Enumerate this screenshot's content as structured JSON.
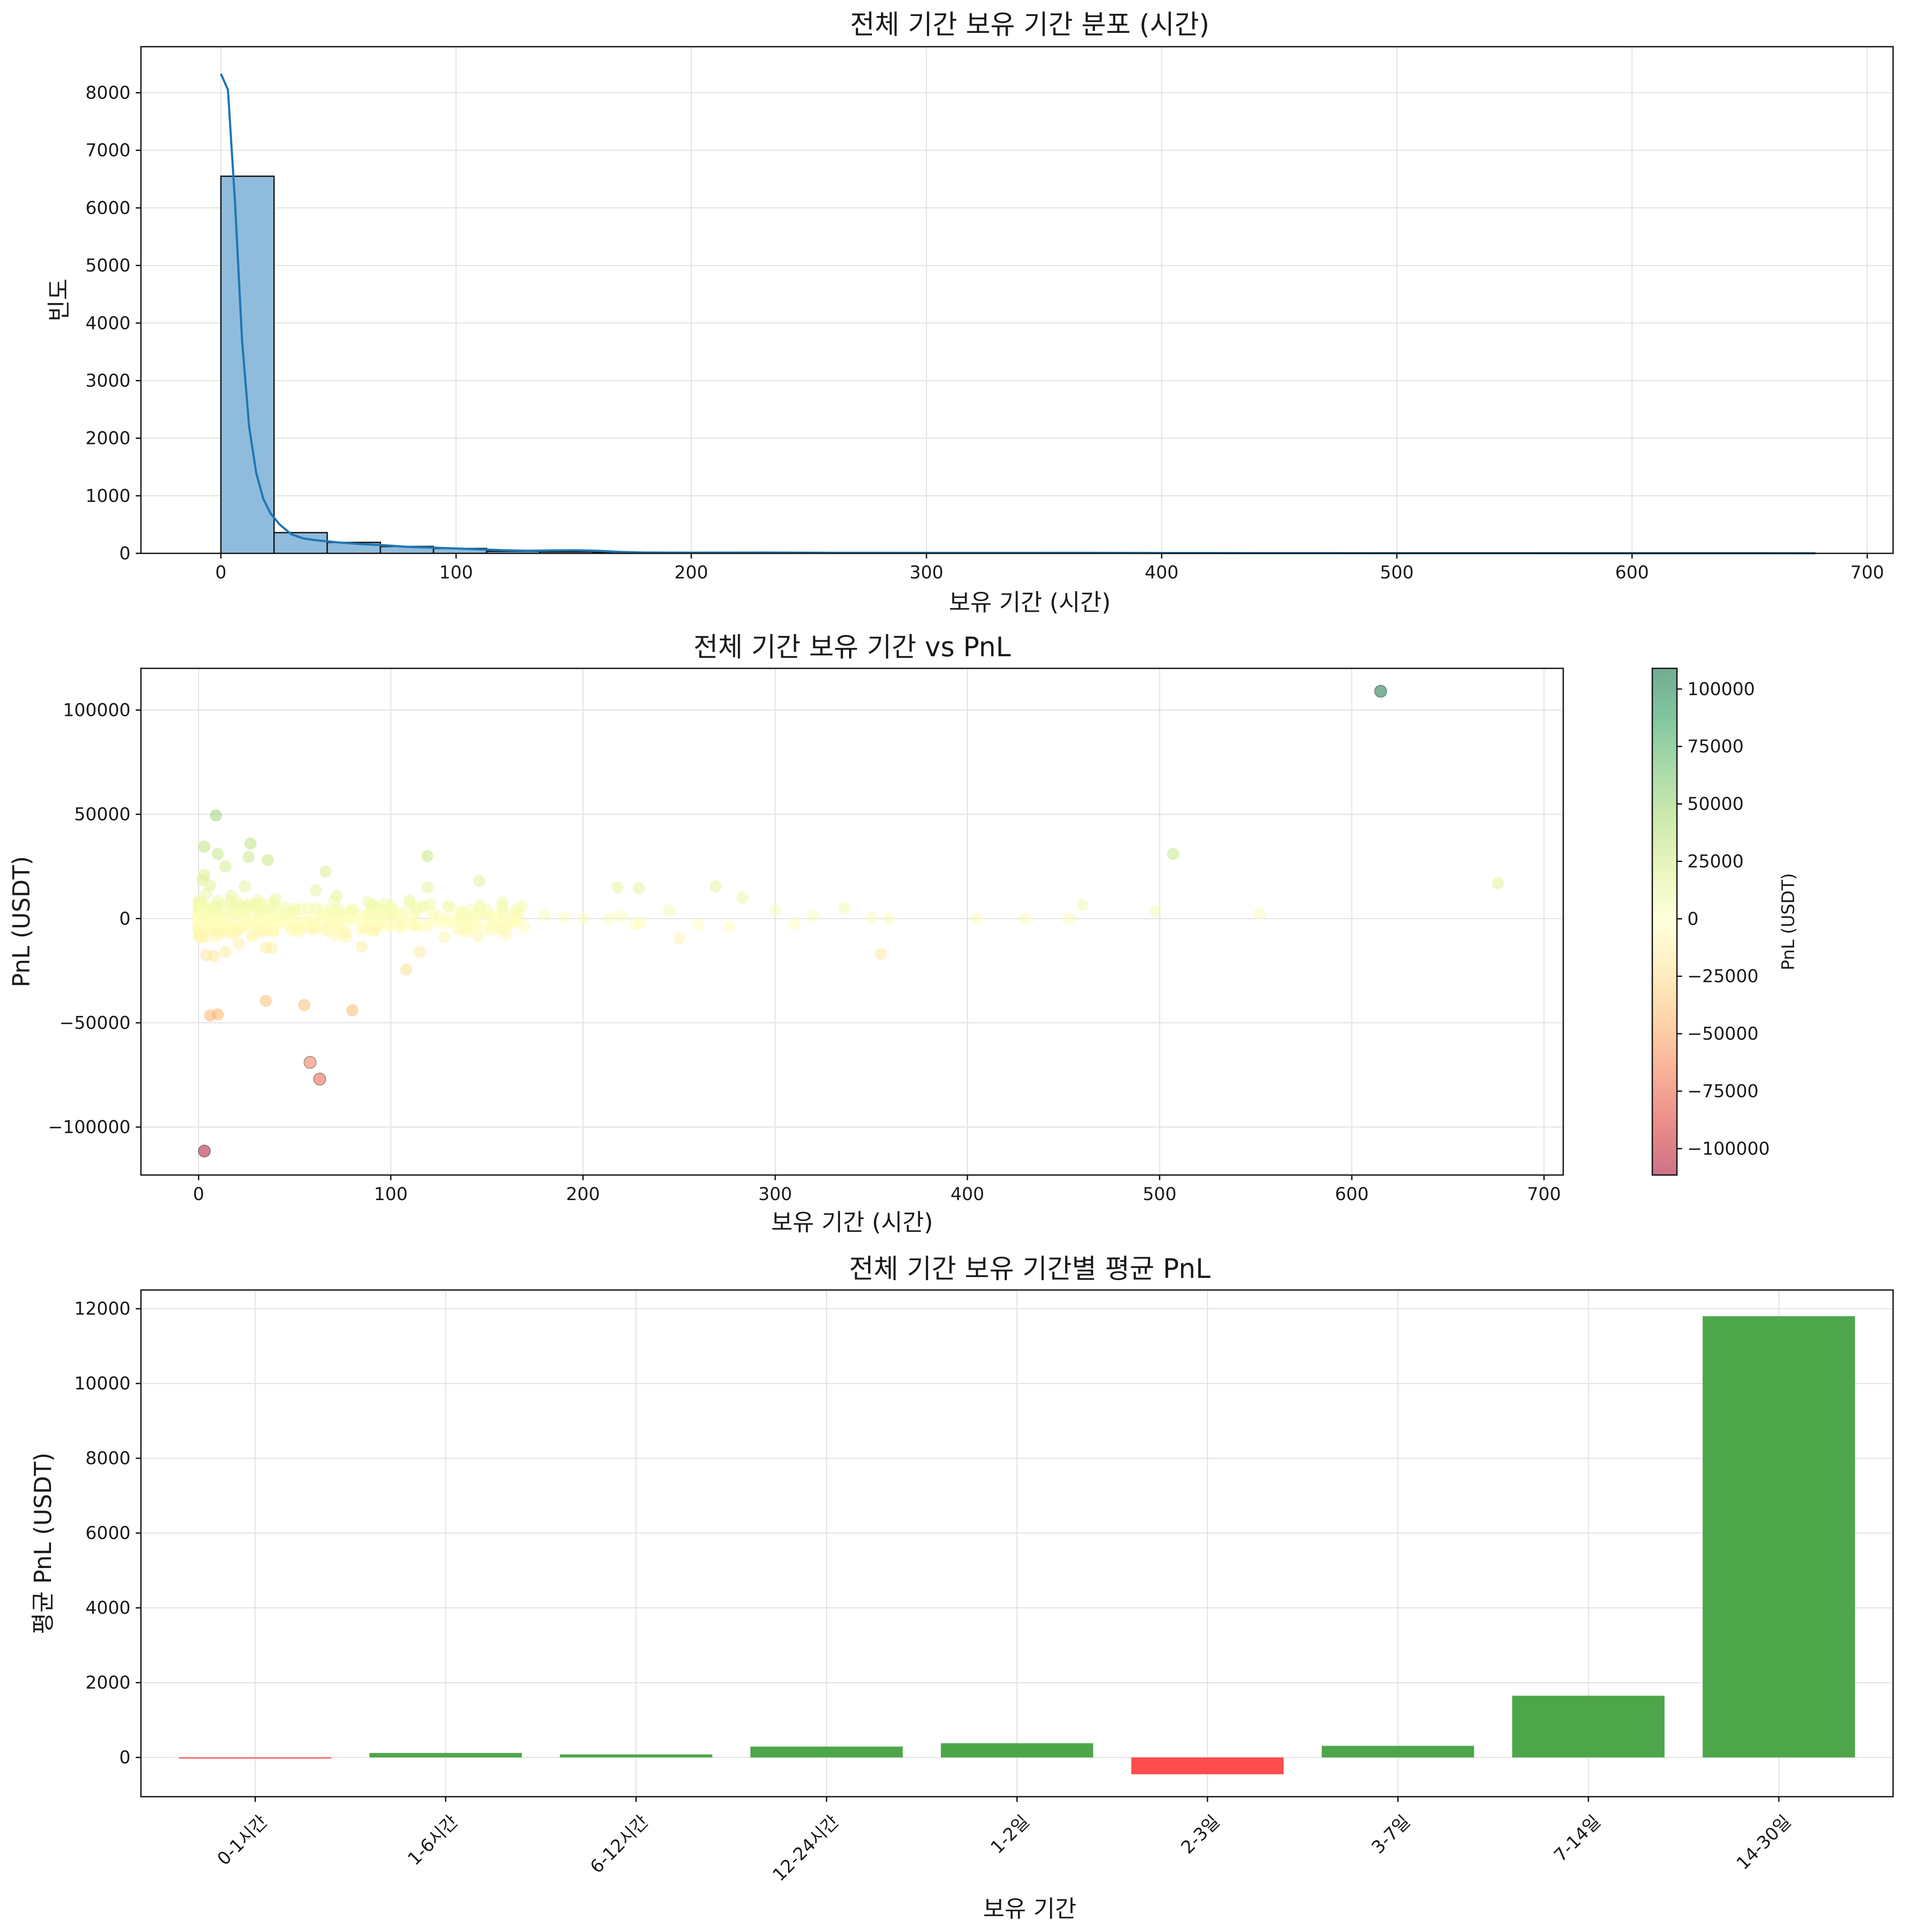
{
  "chart_data": [
    {
      "type": "bar",
      "subtype": "histogram",
      "title": "전체 기간 보유 기간 분포 (시간)",
      "xlabel": "보유 기간 (시간)",
      "ylabel": "빈도",
      "xlim": [
        -34,
        711
      ],
      "ylim": [
        0,
        8800
      ],
      "xticks": [
        0,
        100,
        200,
        300,
        400,
        500,
        600,
        700
      ],
      "yticks": [
        0,
        1000,
        2000,
        3000,
        4000,
        5000,
        6000,
        7000,
        8000
      ],
      "grid": true,
      "bar_color": "#8fbcdc",
      "line_color": "#1f77b4",
      "bins": [
        {
          "x0": 0,
          "x1": 22.6,
          "count": 6550
        },
        {
          "x0": 22.6,
          "x1": 45.2,
          "count": 360
        },
        {
          "x0": 45.2,
          "x1": 67.8,
          "count": 190
        },
        {
          "x0": 67.8,
          "x1": 90.4,
          "count": 120
        },
        {
          "x0": 90.4,
          "x1": 113,
          "count": 85
        },
        {
          "x0": 113,
          "x1": 135.6,
          "count": 35
        },
        {
          "x0": 135.6,
          "x1": 158.2,
          "count": 28
        },
        {
          "x0": 158.2,
          "x1": 180.8,
          "count": 15
        },
        {
          "x0": 180.8,
          "x1": 203.4,
          "count": 8
        },
        {
          "x0": 203.4,
          "x1": 226,
          "count": 10
        },
        {
          "x0": 226,
          "x1": 248.6,
          "count": 6
        },
        {
          "x0": 248.6,
          "x1": 271.2,
          "count": 8
        },
        {
          "x0": 271.2,
          "x1": 293.8,
          "count": 5
        },
        {
          "x0": 293.8,
          "x1": 316.4,
          "count": 3
        },
        {
          "x0": 316.4,
          "x1": 339,
          "count": 2
        },
        {
          "x0": 339,
          "x1": 361.6,
          "count": 5
        },
        {
          "x0": 361.6,
          "x1": 384.2,
          "count": 1
        },
        {
          "x0": 384.2,
          "x1": 406.8,
          "count": 2
        },
        {
          "x0": 406.8,
          "x1": 429.4,
          "count": 1
        },
        {
          "x0": 429.4,
          "x1": 452,
          "count": 1
        },
        {
          "x0": 452,
          "x1": 474.6,
          "count": 2
        },
        {
          "x0": 474.6,
          "x1": 497.2,
          "count": 1
        },
        {
          "x0": 497.2,
          "x1": 519.8,
          "count": 2
        },
        {
          "x0": 519.8,
          "x1": 542.4,
          "count": 1
        },
        {
          "x0": 542.4,
          "x1": 565,
          "count": 1
        },
        {
          "x0": 565,
          "x1": 587.6,
          "count": 1
        },
        {
          "x0": 587.6,
          "x1": 610.2,
          "count": 1
        },
        {
          "x0": 610.2,
          "x1": 632.8,
          "count": 1
        },
        {
          "x0": 632.8,
          "x1": 655.4,
          "count": 1
        },
        {
          "x0": 655.4,
          "x1": 678,
          "count": 1
        }
      ],
      "kde": {
        "x": [
          0,
          3,
          6,
          9,
          12,
          15,
          18,
          21,
          25,
          30,
          35,
          40,
          50,
          60,
          70,
          80,
          90,
          100,
          110,
          120,
          130,
          140,
          150,
          160,
          170,
          180,
          200,
          230,
          260,
          300,
          360,
          400,
          500,
          600,
          678
        ],
        "y": [
          8330,
          8050,
          6100,
          3700,
          2200,
          1400,
          950,
          700,
          500,
          330,
          260,
          230,
          190,
          160,
          140,
          110,
          100,
          85,
          70,
          55,
          45,
          50,
          55,
          45,
          25,
          15,
          12,
          14,
          10,
          8,
          9,
          6,
          4,
          3,
          2
        ]
      }
    },
    {
      "type": "scatter",
      "title": "전체 기간 보유 기간 vs PnL",
      "xlabel": "보유 기간 (시간)",
      "ylabel": "PnL (USDT)",
      "xlim": [
        -30,
        710
      ],
      "ylim": [
        -123000,
        120000
      ],
      "xticks": [
        0,
        100,
        200,
        300,
        400,
        500,
        600,
        700
      ],
      "yticks": [
        -100000,
        -50000,
        0,
        50000,
        100000
      ],
      "grid": true,
      "colormap": "RdYlGn",
      "colorbar": {
        "label": "PnL (USDT)",
        "range": [
          -111500,
          109000
        ],
        "ticks": [
          -100000,
          -75000,
          -50000,
          -25000,
          0,
          25000,
          50000,
          75000,
          100000
        ]
      },
      "points": [
        [
          615,
          109000
        ],
        [
          9,
          49500
        ],
        [
          27,
          36000
        ],
        [
          3,
          34500
        ],
        [
          10,
          31000
        ],
        [
          26,
          29500
        ],
        [
          36,
          28000
        ],
        [
          119,
          30000
        ],
        [
          507,
          31000
        ],
        [
          14,
          25000
        ],
        [
          66,
          22500
        ],
        [
          3,
          21000
        ],
        [
          2,
          18500
        ],
        [
          146,
          18000
        ],
        [
          676,
          17000
        ],
        [
          6,
          16000
        ],
        [
          24,
          15500
        ],
        [
          61,
          13500
        ],
        [
          119,
          15000
        ],
        [
          218,
          15000
        ],
        [
          229,
          14500
        ],
        [
          269,
          15500
        ],
        [
          72,
          11000
        ],
        [
          283,
          10000
        ],
        [
          4,
          12000
        ],
        [
          17,
          11000
        ],
        [
          40,
          9500
        ],
        [
          88,
          8000
        ],
        [
          110,
          7500
        ],
        [
          130,
          6000
        ],
        [
          460,
          6500
        ],
        [
          336,
          5000
        ],
        [
          245,
          4000
        ],
        [
          300,
          4000
        ],
        [
          498,
          3500
        ],
        [
          552,
          2500
        ],
        [
          180,
          1500
        ],
        [
          220,
          1000
        ],
        [
          320,
          1500
        ],
        [
          350,
          500
        ],
        [
          359,
          0
        ],
        [
          405,
          0
        ],
        [
          430,
          0
        ],
        [
          453,
          0
        ],
        [
          200,
          0
        ],
        [
          190,
          500
        ],
        [
          150,
          2000
        ],
        [
          160,
          0
        ],
        [
          140,
          1000
        ],
        [
          100,
          3000
        ],
        [
          80,
          4000
        ],
        [
          50,
          5000
        ],
        [
          30,
          6000
        ],
        [
          20,
          8000
        ],
        [
          8,
          5000
        ],
        [
          12,
          3000
        ],
        [
          5,
          -2000
        ],
        [
          2,
          -5000
        ],
        [
          1,
          2000
        ],
        [
          45,
          -3000
        ],
        [
          60,
          -4000
        ],
        [
          70,
          -2000
        ],
        [
          90,
          -5000
        ],
        [
          120,
          -2000
        ],
        [
          165,
          -1500
        ],
        [
          230,
          -2000
        ],
        [
          260,
          -3000
        ],
        [
          310,
          -2500
        ],
        [
          227,
          -3000
        ],
        [
          214,
          0
        ],
        [
          276,
          -4000
        ],
        [
          4,
          -17500
        ],
        [
          8,
          -18000
        ],
        [
          14,
          -16000
        ],
        [
          21,
          -12000
        ],
        [
          35,
          -14000
        ],
        [
          38,
          -14000
        ],
        [
          85,
          -13500
        ],
        [
          115,
          -16000
        ],
        [
          128,
          -9000
        ],
        [
          250,
          -9500
        ],
        [
          355,
          -17000
        ],
        [
          108,
          -24500
        ],
        [
          6,
          -46500
        ],
        [
          10,
          -46000
        ],
        [
          35,
          -39500
        ],
        [
          55,
          -41500
        ],
        [
          80,
          -44000
        ],
        [
          58,
          -69000
        ],
        [
          63,
          -77000
        ],
        [
          3,
          -111500
        ]
      ]
    },
    {
      "type": "bar",
      "title": "전체 기간 보유 기간별 평균 PnL",
      "xlabel": "보유 기간",
      "ylabel": "평균 PnL (USDT)",
      "ylim": [
        -1050,
        12500
      ],
      "yticks": [
        0,
        2000,
        4000,
        6000,
        8000,
        10000,
        12000
      ],
      "grid": true,
      "positive_color": "#4ea64a",
      "negative_color": "#ff4d4d",
      "categories": [
        "0-1시간",
        "1-6시간",
        "6-12시간",
        "12-24시간",
        "1-2일",
        "2-3일",
        "3-7일",
        "7-14일",
        "14-30일"
      ],
      "values": [
        -30,
        120,
        80,
        290,
        380,
        -450,
        310,
        1650,
        11800
      ]
    }
  ]
}
